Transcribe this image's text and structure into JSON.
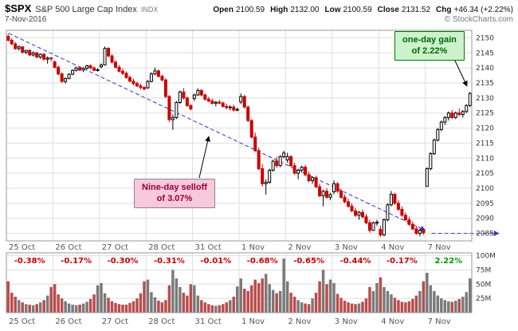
{
  "header": {
    "symbol": "$SPX",
    "name": "S&P 500 Large Cap Index",
    "exchange": "INDX",
    "date": "7-Nov-2016",
    "quote": {
      "open_label": "Open",
      "open": "2100.59",
      "high_label": "High",
      "high": "2132.00",
      "low_label": "Low",
      "low": "2100.59",
      "close_label": "Close",
      "close": "2131.52",
      "chg_label": "Chg",
      "chg": "+46.34 (+2.22%)"
    },
    "watermark": "© StockCharts.com"
  },
  "annotations": {
    "gain_line1": "one-day gain",
    "gain_line2": "of 2.22%",
    "selloff_line1": "Nine-day selloff",
    "selloff_line2": "of 3.07%"
  },
  "colors": {
    "candle_down": "#cc0000",
    "candle_up_fill": "#ffffff",
    "candle_up_stroke": "#000000",
    "vol_down": "#b84d4d",
    "vol_up": "#7a7a7a",
    "trendline": "#3333cc",
    "grid": "#dddddd",
    "border": "#999999",
    "axis_text": "#333333",
    "day_label": "#555555",
    "pct_neg": "#cc0000",
    "pct_pos": "#009900"
  },
  "chart_data": {
    "type": "candlestick",
    "title": "$SPX intraday candlestick chart with volume",
    "days": [
      "25 Oct",
      "26 Oct",
      "27 Oct",
      "28 Oct",
      "31 Oct",
      "1 Nov",
      "2 Nov",
      "3 Nov",
      "4 Nov",
      "7 Nov"
    ],
    "daily_change_pct": [
      "-0.38%",
      "-0.17%",
      "-0.30%",
      "-0.31%",
      "-0.01%",
      "-0.68%",
      "-0.65%",
      "-0.44%",
      "-0.17%",
      "2.22%"
    ],
    "price_ticks": [
      2085,
      2090,
      2095,
      2100,
      2105,
      2110,
      2115,
      2120,
      2125,
      2130,
      2135,
      2140,
      2145,
      2150
    ],
    "price_range": [
      2082.5,
      2152.5
    ],
    "volume_ticks_m": [
      25,
      50,
      75,
      100
    ],
    "volume_scale_max": 105,
    "bars_per_day": 13,
    "trendline": {
      "from_price": 2151.5,
      "to_price": 2086,
      "label": "nine-day descending trendline"
    },
    "support_level": 2085,
    "candles": [
      [
        2150.5,
        2151.3,
        2148.8,
        2149.2
      ],
      [
        2149.2,
        2149.8,
        2147.5,
        2148.0
      ],
      [
        2148.0,
        2148.6,
        2146.0,
        2146.4
      ],
      [
        2146.4,
        2147.5,
        2145.8,
        2147.0
      ],
      [
        2147.0,
        2147.3,
        2144.8,
        2145.2
      ],
      [
        2145.2,
        2146.0,
        2144.5,
        2145.8
      ],
      [
        2145.8,
        2146.2,
        2144.0,
        2144.3
      ],
      [
        2144.3,
        2145.5,
        2143.8,
        2145.0
      ],
      [
        2145.0,
        2145.3,
        2143.2,
        2143.6
      ],
      [
        2143.6,
        2144.8,
        2143.0,
        2144.5
      ],
      [
        2144.5,
        2144.9,
        2142.5,
        2142.9
      ],
      [
        2142.9,
        2143.8,
        2141.4,
        2143.3
      ],
      [
        2143.3,
        2143.6,
        2142.2,
        2143.2
      ],
      [
        2142.0,
        2142.5,
        2139.8,
        2140.2
      ],
      [
        2140.2,
        2140.8,
        2137.5,
        2138.0
      ],
      [
        2138.0,
        2138.5,
        2135.0,
        2135.5
      ],
      [
        2135.5,
        2136.8,
        2134.8,
        2136.5
      ],
      [
        2136.5,
        2138.2,
        2136.2,
        2137.9
      ],
      [
        2137.9,
        2139.5,
        2137.6,
        2139.2
      ],
      [
        2139.2,
        2140.4,
        2138.8,
        2140.0
      ],
      [
        2140.0,
        2140.6,
        2138.9,
        2139.3
      ],
      [
        2139.3,
        2140.2,
        2138.6,
        2139.9
      ],
      [
        2139.9,
        2141.0,
        2139.5,
        2140.7
      ],
      [
        2140.7,
        2141.2,
        2139.6,
        2140.0
      ],
      [
        2140.0,
        2140.5,
        2138.9,
        2139.2
      ],
      [
        2139.2,
        2139.9,
        2138.8,
        2139.4
      ],
      [
        2140.4,
        2141.5,
        2139.8,
        2141.0
      ],
      [
        2141.0,
        2147.1,
        2140.8,
        2146.5
      ],
      [
        2146.5,
        2146.9,
        2143.5,
        2144.0
      ],
      [
        2144.0,
        2144.5,
        2141.5,
        2141.9
      ],
      [
        2141.9,
        2142.6,
        2139.8,
        2140.2
      ],
      [
        2140.2,
        2141.0,
        2138.5,
        2138.9
      ],
      [
        2138.9,
        2139.8,
        2137.6,
        2138.2
      ],
      [
        2138.2,
        2138.8,
        2136.4,
        2136.8
      ],
      [
        2136.8,
        2137.5,
        2135.2,
        2135.6
      ],
      [
        2135.6,
        2136.4,
        2134.2,
        2134.8
      ],
      [
        2134.8,
        2135.5,
        2133.6,
        2134.0
      ],
      [
        2134.0,
        2134.8,
        2132.8,
        2133.5
      ],
      [
        2133.5,
        2134.0,
        2132.5,
        2133.0
      ],
      [
        2133.4,
        2136.0,
        2133.0,
        2135.5
      ],
      [
        2135.5,
        2138.5,
        2135.2,
        2138.0
      ],
      [
        2138.0,
        2140.1,
        2137.6,
        2139.0
      ],
      [
        2139.0,
        2139.5,
        2136.8,
        2137.2
      ],
      [
        2137.2,
        2137.8,
        2135.5,
        2136.0
      ],
      [
        2136.0,
        2136.5,
        2130.0,
        2130.5
      ],
      [
        2130.5,
        2131.0,
        2122.0,
        2122.8
      ],
      [
        2122.8,
        2124.5,
        2119.4,
        2123.5
      ],
      [
        2123.5,
        2129.0,
        2123.0,
        2128.5
      ],
      [
        2128.5,
        2132.5,
        2128.0,
        2132.0
      ],
      [
        2132.0,
        2133.3,
        2129.5,
        2130.0
      ],
      [
        2130.0,
        2130.5,
        2127.0,
        2127.5
      ],
      [
        2127.5,
        2128.0,
        2125.8,
        2126.4
      ],
      [
        2129.8,
        2131.5,
        2129.0,
        2131.0
      ],
      [
        2131.0,
        2133.2,
        2130.8,
        2132.5
      ],
      [
        2132.5,
        2133.0,
        2130.5,
        2131.0
      ],
      [
        2131.0,
        2131.5,
        2129.2,
        2129.6
      ],
      [
        2129.6,
        2130.4,
        2128.5,
        2129.0
      ],
      [
        2129.0,
        2129.8,
        2127.8,
        2128.2
      ],
      [
        2128.2,
        2129.0,
        2127.2,
        2128.6
      ],
      [
        2128.6,
        2129.4,
        2127.9,
        2128.3
      ],
      [
        2128.3,
        2128.8,
        2126.8,
        2127.2
      ],
      [
        2127.2,
        2128.0,
        2126.2,
        2126.8
      ],
      [
        2126.8,
        2127.6,
        2125.9,
        2127.0
      ],
      [
        2127.0,
        2127.8,
        2125.5,
        2126.0
      ],
      [
        2126.0,
        2126.8,
        2125.6,
        2126.2
      ],
      [
        2128.7,
        2131.5,
        2128.0,
        2130.5
      ],
      [
        2130.5,
        2131.0,
        2126.5,
        2127.0
      ],
      [
        2127.0,
        2127.5,
        2122.0,
        2122.5
      ],
      [
        2122.5,
        2123.0,
        2116.5,
        2117.0
      ],
      [
        2117.0,
        2118.5,
        2112.0,
        2112.5
      ],
      [
        2112.5,
        2113.5,
        2106.0,
        2106.5
      ],
      [
        2106.5,
        2108.0,
        2100.5,
        2101.5
      ],
      [
        2101.5,
        2103.0,
        2097.9,
        2102.0
      ],
      [
        2102.0,
        2106.5,
        2101.5,
        2106.0
      ],
      [
        2106.0,
        2109.5,
        2105.5,
        2109.0
      ],
      [
        2109.0,
        2110.5,
        2106.8,
        2107.5
      ],
      [
        2107.5,
        2111.0,
        2107.0,
        2110.5
      ],
      [
        2110.5,
        2112.5,
        2110.0,
        2111.7
      ],
      [
        2109.4,
        2111.8,
        2108.5,
        2110.5
      ],
      [
        2110.5,
        2111.0,
        2107.0,
        2107.5
      ],
      [
        2107.5,
        2108.5,
        2104.5,
        2105.0
      ],
      [
        2105.0,
        2106.5,
        2103.0,
        2106.0
      ],
      [
        2106.0,
        2107.5,
        2105.2,
        2107.0
      ],
      [
        2107.0,
        2107.8,
        2104.0,
        2104.5
      ],
      [
        2104.5,
        2105.5,
        2102.0,
        2102.5
      ],
      [
        2102.5,
        2104.0,
        2101.5,
        2103.5
      ],
      [
        2103.5,
        2104.2,
        2100.0,
        2100.5
      ],
      [
        2100.5,
        2101.5,
        2097.0,
        2097.5
      ],
      [
        2097.5,
        2099.5,
        2094.0,
        2099.0
      ],
      [
        2099.0,
        2100.0,
        2096.5,
        2097.0
      ],
      [
        2097.0,
        2098.5,
        2096.0,
        2097.9
      ],
      [
        2098.8,
        2102.6,
        2098.0,
        2101.5
      ],
      [
        2101.5,
        2102.0,
        2098.5,
        2099.0
      ],
      [
        2099.0,
        2099.8,
        2096.5,
        2097.0
      ],
      [
        2097.0,
        2098.0,
        2095.0,
        2095.5
      ],
      [
        2095.5,
        2096.5,
        2093.5,
        2094.0
      ],
      [
        2094.0,
        2095.0,
        2092.0,
        2092.5
      ],
      [
        2092.5,
        2093.5,
        2090.5,
        2091.0
      ],
      [
        2091.0,
        2092.5,
        2089.5,
        2092.0
      ],
      [
        2092.0,
        2093.0,
        2090.0,
        2090.5
      ],
      [
        2090.5,
        2091.5,
        2088.0,
        2088.5
      ],
      [
        2088.5,
        2089.5,
        2085.2,
        2086.0
      ],
      [
        2086.0,
        2089.0,
        2085.8,
        2088.5
      ],
      [
        2088.5,
        2089.5,
        2087.5,
        2088.7
      ],
      [
        2086.3,
        2087.5,
        2083.8,
        2084.5
      ],
      [
        2084.5,
        2090.0,
        2084.0,
        2089.5
      ],
      [
        2089.5,
        2095.0,
        2089.0,
        2094.5
      ],
      [
        2094.5,
        2099.1,
        2094.0,
        2098.0
      ],
      [
        2098.0,
        2098.5,
        2094.5,
        2095.0
      ],
      [
        2095.0,
        2096.0,
        2092.5,
        2093.0
      ],
      [
        2093.0,
        2094.0,
        2090.5,
        2091.0
      ],
      [
        2091.0,
        2092.0,
        2089.0,
        2089.5
      ],
      [
        2089.5,
        2090.5,
        2087.5,
        2088.0
      ],
      [
        2088.0,
        2089.0,
        2086.0,
        2086.5
      ],
      [
        2086.5,
        2087.5,
        2084.5,
        2085.0
      ],
      [
        2085.0,
        2086.5,
        2084.0,
        2086.0
      ],
      [
        2086.0,
        2086.5,
        2084.5,
        2085.2
      ],
      [
        2100.6,
        2107.0,
        2100.6,
        2106.5
      ],
      [
        2106.5,
        2112.0,
        2106.0,
        2111.5
      ],
      [
        2111.5,
        2116.5,
        2111.0,
        2116.0
      ],
      [
        2116.0,
        2120.0,
        2115.5,
        2119.5
      ],
      [
        2119.5,
        2122.5,
        2119.0,
        2122.0
      ],
      [
        2122.0,
        2124.0,
        2121.0,
        2123.5
      ],
      [
        2123.5,
        2125.5,
        2122.5,
        2125.0
      ],
      [
        2125.0,
        2126.0,
        2123.0,
        2123.5
      ],
      [
        2123.5,
        2125.5,
        2123.0,
        2125.0
      ],
      [
        2125.0,
        2126.5,
        2124.0,
        2124.5
      ],
      [
        2124.5,
        2126.0,
        2123.5,
        2125.5
      ],
      [
        2125.5,
        2128.0,
        2125.0,
        2127.5
      ],
      [
        2127.5,
        2132.0,
        2127.0,
        2131.5
      ]
    ],
    "volumes_m": [
      55,
      35,
      28,
      22,
      18,
      15,
      14,
      13,
      15,
      18,
      22,
      30,
      45,
      50,
      32,
      25,
      20,
      16,
      14,
      13,
      14,
      16,
      19,
      24,
      32,
      48,
      52,
      34,
      26,
      20,
      17,
      15,
      14,
      14,
      17,
      20,
      25,
      34,
      55,
      58,
      36,
      27,
      21,
      18,
      22,
      48,
      75,
      60,
      45,
      35,
      30,
      50,
      48,
      30,
      22,
      18,
      15,
      13,
      12,
      13,
      15,
      18,
      22,
      28,
      46,
      60,
      42,
      38,
      48,
      58,
      52,
      60,
      68,
      50,
      40,
      34,
      38,
      95,
      55,
      35,
      28,
      22,
      18,
      16,
      15,
      25,
      35,
      55,
      75,
      50,
      58,
      52,
      33,
      26,
      21,
      18,
      16,
      15,
      16,
      19,
      25,
      45,
      38,
      52,
      62,
      45,
      38,
      32,
      26,
      22,
      19,
      18,
      20,
      24,
      30,
      38,
      55,
      70,
      48,
      38,
      30,
      25,
      22,
      20,
      19,
      21,
      24,
      28,
      36,
      60
    ]
  }
}
